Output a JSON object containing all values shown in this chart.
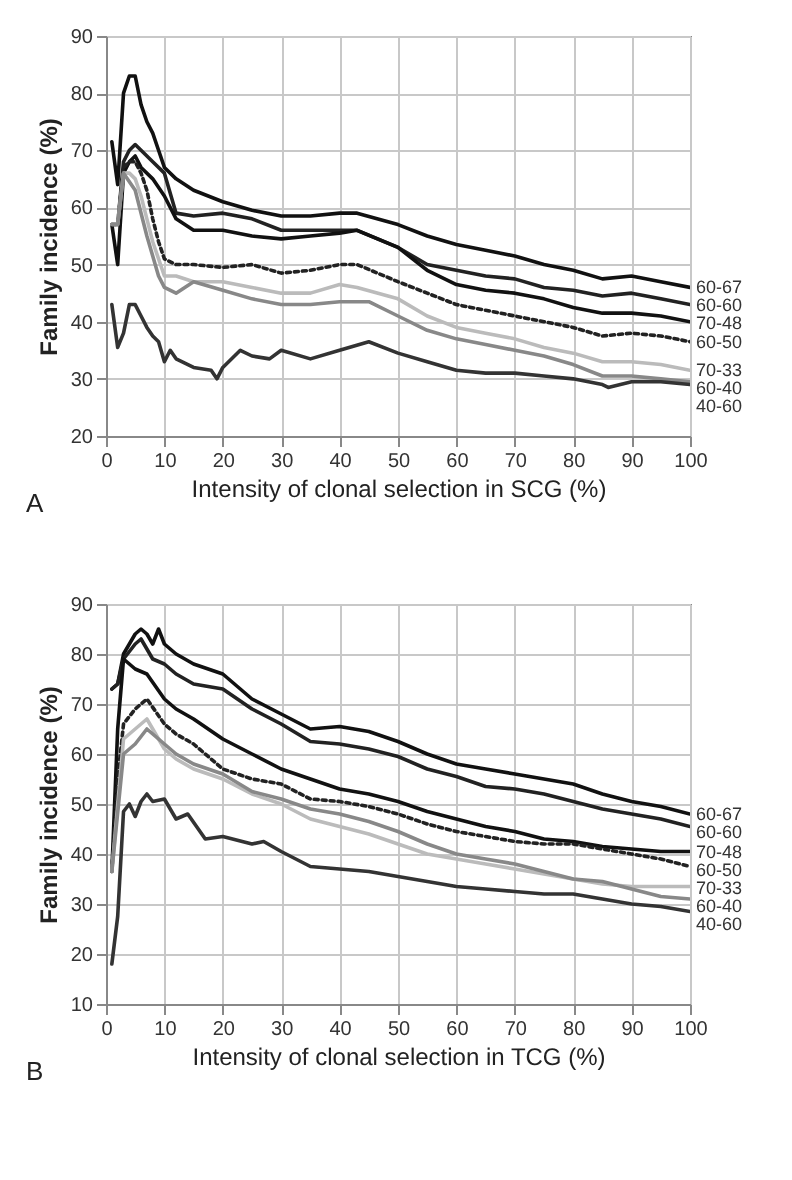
{
  "chart_data": [
    {
      "type": "line",
      "xlabel": "Intensity of clonal selection in SCG (%)",
      "ylabel": "Family incidence (%)",
      "annotations": [
        "A"
      ],
      "xlim": [
        0,
        100
      ],
      "xticks": [
        0,
        10,
        20,
        30,
        40,
        50,
        60,
        70,
        80,
        90,
        100
      ],
      "ylim": [
        20,
        90
      ],
      "yticks": [
        20,
        30,
        40,
        50,
        60,
        70,
        80,
        90
      ],
      "grid": true,
      "marker": "none",
      "series": [
        {
          "name": "60-67",
          "color": "#111111",
          "line_style": "solid",
          "x": [
            1,
            2,
            3,
            4,
            5,
            6,
            7,
            8,
            9,
            10,
            12,
            15,
            20,
            25,
            30,
            35,
            40,
            43,
            50,
            55,
            60,
            65,
            70,
            75,
            80,
            85,
            90,
            95,
            100
          ],
          "values": [
            71.5,
            64,
            80,
            83,
            83,
            78,
            75,
            73,
            70,
            67,
            65,
            63,
            61,
            59.5,
            58.5,
            58.5,
            59,
            59,
            57,
            55,
            53.5,
            52.5,
            51.5,
            50,
            49,
            47.5,
            48,
            47,
            46
          ]
        },
        {
          "name": "60-60",
          "color": "#222222",
          "line_style": "solid",
          "x": [
            1,
            2,
            3,
            4,
            5,
            6,
            8,
            10,
            12,
            15,
            20,
            25,
            30,
            35,
            40,
            43,
            50,
            55,
            60,
            65,
            70,
            75,
            80,
            85,
            90,
            95,
            100
          ],
          "values": [
            57,
            57,
            68,
            70,
            71,
            70,
            68,
            66,
            59,
            58.5,
            59,
            58,
            56,
            56,
            56,
            56,
            53,
            50,
            49,
            48,
            47.5,
            46,
            45.5,
            44.5,
            45,
            44,
            43
          ]
        },
        {
          "name": "70-48",
          "color": "#111111",
          "line_style": "solid",
          "x": [
            1,
            2,
            3,
            4,
            5,
            6,
            8,
            10,
            12,
            15,
            20,
            25,
            30,
            35,
            40,
            43,
            50,
            55,
            60,
            65,
            70,
            75,
            80,
            85,
            90,
            95,
            100
          ],
          "values": [
            57,
            50,
            66,
            68,
            69,
            67,
            65,
            62,
            58,
            56,
            56,
            55,
            54.5,
            55,
            55.5,
            56,
            53,
            49,
            46.5,
            45.5,
            45,
            44,
            42.5,
            41.5,
            41.5,
            41,
            40
          ]
        },
        {
          "name": "60-50",
          "color": "#222222",
          "line_style": "dotted",
          "x": [
            1,
            2,
            3,
            4,
            5,
            6,
            7,
            8,
            9,
            10,
            12,
            15,
            20,
            25,
            30,
            35,
            40,
            43,
            50,
            55,
            60,
            65,
            70,
            75,
            80,
            85,
            90,
            95,
            100
          ],
          "values": [
            57,
            57,
            67,
            68,
            68,
            66,
            63,
            58,
            54,
            51,
            50,
            50,
            49.5,
            50,
            48.5,
            49,
            50,
            50,
            47,
            45,
            43,
            42,
            41,
            40,
            39,
            37.5,
            38,
            37.5,
            36.5
          ]
        },
        {
          "name": "70-33",
          "color": "#bbbbbb",
          "line_style": "solid",
          "x": [
            1,
            2,
            3,
            4,
            5,
            6,
            7,
            8,
            9,
            10,
            12,
            15,
            20,
            25,
            30,
            35,
            40,
            43,
            50,
            55,
            60,
            65,
            70,
            75,
            80,
            85,
            90,
            95,
            100
          ],
          "values": [
            57,
            57,
            66,
            66,
            65,
            62,
            58,
            54,
            51,
            48,
            48,
            47,
            47,
            46,
            45,
            45,
            46.5,
            46,
            44,
            41,
            39,
            38,
            37,
            35.5,
            34.5,
            33,
            33,
            32.5,
            31.5
          ]
        },
        {
          "name": "60-40",
          "color": "#888888",
          "line_style": "solid",
          "x": [
            1,
            2,
            3,
            5,
            7,
            9,
            10,
            12,
            15,
            20,
            25,
            30,
            35,
            40,
            45,
            50,
            55,
            60,
            65,
            70,
            75,
            80,
            85,
            90,
            95,
            100
          ],
          "values": [
            57,
            57,
            66,
            63,
            55,
            48,
            46,
            45,
            47,
            45.5,
            44,
            43,
            43,
            43.5,
            43.5,
            41,
            38.5,
            37,
            36,
            35,
            34,
            32.5,
            30.5,
            30.5,
            30,
            29.5
          ]
        },
        {
          "name": "40-60",
          "color": "#333333",
          "line_style": "solid",
          "x": [
            1,
            2,
            3,
            4,
            5,
            6,
            7,
            8,
            9,
            10,
            11,
            12,
            15,
            18,
            19,
            20,
            23,
            25,
            28,
            30,
            35,
            40,
            45,
            50,
            55,
            60,
            65,
            70,
            75,
            80,
            85,
            86,
            90,
            95,
            100
          ],
          "values": [
            43,
            35.5,
            38,
            43,
            43,
            41,
            39,
            37.5,
            36.5,
            33,
            35,
            33.5,
            32,
            31.5,
            30,
            32,
            35,
            34,
            33.5,
            35,
            33.5,
            35,
            36.5,
            34.5,
            33,
            31.5,
            31,
            31,
            30.5,
            30,
            29,
            28.5,
            29.5,
            29.5,
            29
          ]
        }
      ]
    },
    {
      "type": "line",
      "xlabel": "Intensity of clonal selection in TCG (%)",
      "ylabel": "Family incidence (%)",
      "annotations": [
        "B"
      ],
      "xlim": [
        0,
        100
      ],
      "xticks": [
        0,
        10,
        20,
        30,
        40,
        50,
        60,
        70,
        80,
        90,
        100
      ],
      "ylim": [
        10,
        90
      ],
      "yticks": [
        10,
        20,
        30,
        40,
        50,
        60,
        70,
        80,
        90
      ],
      "grid": true,
      "marker": "none",
      "series": [
        {
          "name": "60-67",
          "color": "#111111",
          "line_style": "solid",
          "x": [
            1,
            2,
            3,
            5,
            6,
            7,
            8,
            9,
            10,
            12,
            15,
            20,
            25,
            30,
            35,
            40,
            45,
            50,
            55,
            60,
            65,
            70,
            75,
            80,
            85,
            90,
            95,
            100
          ],
          "values": [
            73,
            74,
            80,
            84,
            85,
            84,
            82,
            85,
            82,
            80,
            78,
            76,
            71,
            68,
            65,
            65.5,
            64.5,
            62.5,
            60,
            58,
            57,
            56,
            55,
            54,
            52,
            50.5,
            49.5,
            48
          ]
        },
        {
          "name": "60-60",
          "color": "#222222",
          "line_style": "solid",
          "x": [
            1,
            2,
            3,
            5,
            6,
            8,
            10,
            12,
            15,
            20,
            25,
            30,
            35,
            40,
            45,
            50,
            55,
            60,
            65,
            70,
            75,
            80,
            85,
            90,
            95,
            100
          ],
          "values": [
            73,
            74,
            79,
            82,
            83,
            79,
            78,
            76,
            74,
            73,
            69,
            66,
            62.5,
            62,
            61,
            59.5,
            57,
            55.5,
            53.5,
            53,
            52,
            50.5,
            49,
            48,
            47,
            45.5
          ]
        },
        {
          "name": "70-48",
          "color": "#111111",
          "line_style": "solid",
          "x": [
            1,
            2,
            3,
            5,
            7,
            10,
            12,
            15,
            20,
            25,
            30,
            35,
            40,
            45,
            50,
            55,
            60,
            65,
            70,
            75,
            80,
            85,
            90,
            95,
            100
          ],
          "values": [
            36.5,
            65,
            79,
            77,
            76,
            71,
            69,
            67,
            63,
            60,
            57,
            55,
            53,
            52,
            50.5,
            48.5,
            47,
            45.5,
            44.5,
            43,
            42.5,
            41.5,
            41,
            40.5,
            40.5
          ]
        },
        {
          "name": "60-50",
          "color": "#222222",
          "line_style": "dotted",
          "x": [
            1,
            2,
            3,
            5,
            7,
            10,
            12,
            15,
            20,
            25,
            30,
            35,
            40,
            45,
            50,
            55,
            60,
            65,
            70,
            75,
            80,
            85,
            90,
            95,
            100
          ],
          "values": [
            36.5,
            55,
            66,
            69,
            71,
            66,
            64,
            62,
            57,
            55,
            54,
            51,
            50.5,
            49.5,
            48,
            46,
            44.5,
            43.5,
            42.5,
            42,
            42,
            41,
            40,
            39,
            37.5
          ]
        },
        {
          "name": "70-33",
          "color": "#bbbbbb",
          "line_style": "solid",
          "x": [
            1,
            3,
            5,
            7,
            10,
            12,
            15,
            20,
            25,
            30,
            35,
            40,
            45,
            50,
            55,
            60,
            65,
            70,
            75,
            80,
            85,
            90,
            95,
            100
          ],
          "values": [
            36.5,
            63,
            65,
            67,
            61,
            59,
            57,
            55,
            52,
            50,
            47,
            45.5,
            44,
            42,
            40,
            39,
            38,
            37,
            36,
            35,
            34,
            33.5,
            33.5,
            33.5
          ]
        },
        {
          "name": "60-40",
          "color": "#888888",
          "line_style": "solid",
          "x": [
            1,
            3,
            5,
            7,
            10,
            12,
            15,
            20,
            25,
            30,
            35,
            40,
            45,
            50,
            55,
            60,
            65,
            70,
            75,
            80,
            85,
            90,
            95,
            100
          ],
          "values": [
            36.5,
            60,
            62,
            65,
            62,
            60,
            58,
            56,
            52.5,
            51,
            49,
            48,
            46.5,
            44.5,
            42,
            40,
            39,
            38,
            36.5,
            35,
            34.5,
            33,
            31.5,
            31
          ]
        },
        {
          "name": "40-60",
          "color": "#333333",
          "line_style": "solid",
          "x": [
            1,
            2,
            3,
            4,
            5,
            6,
            7,
            8,
            10,
            12,
            14,
            17,
            20,
            25,
            27,
            30,
            35,
            40,
            45,
            50,
            55,
            60,
            65,
            70,
            75,
            80,
            85,
            90,
            95,
            100
          ],
          "values": [
            18,
            27.5,
            48.5,
            50,
            47.5,
            50.5,
            52,
            50.5,
            51,
            47,
            48,
            43,
            43.5,
            42,
            42.5,
            40.5,
            37.5,
            37,
            36.5,
            35.5,
            34.5,
            33.5,
            33,
            32.5,
            32,
            32,
            31,
            30,
            29.5,
            28.5
          ]
        }
      ]
    }
  ]
}
